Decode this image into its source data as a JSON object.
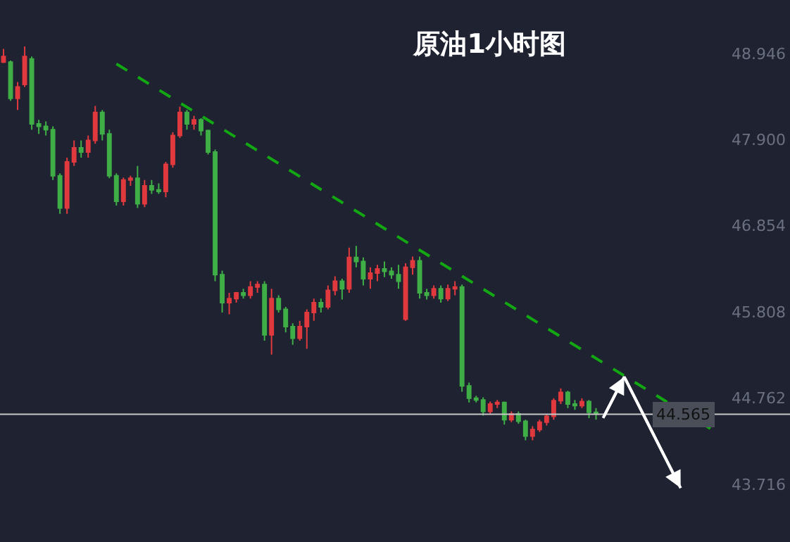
{
  "chart_data": {
    "type": "candlestick",
    "title": "原油1小时图",
    "categories": [
      null,
      null,
      null,
      null,
      null,
      null,
      null,
      null,
      null,
      null,
      null,
      null,
      null,
      null,
      null,
      null,
      null,
      null,
      null,
      null,
      null,
      null,
      null,
      null,
      null,
      null,
      null,
      null,
      null,
      null,
      null,
      null,
      null,
      null,
      null,
      null,
      null,
      null,
      null,
      null,
      null,
      null,
      null,
      null,
      null,
      null,
      null,
      null,
      null,
      null,
      null,
      null,
      null,
      null,
      null,
      null,
      null,
      null,
      null,
      null,
      null,
      null,
      null,
      null,
      null,
      null,
      null,
      null,
      null,
      null,
      null,
      null,
      null,
      null,
      null,
      null,
      null,
      null,
      null,
      null,
      null,
      null,
      null,
      null,
      null,
      null,
      null,
      null,
      null,
      null,
      null,
      null,
      null,
      null,
      null,
      null,
      null,
      null,
      null,
      null,
      null,
      null,
      null,
      null,
      null,
      null,
      null,
      null,
      null,
      null,
      null,
      null
    ],
    "ohlc": [
      [
        48.84,
        49.0,
        48.83,
        48.91
      ],
      [
        48.84,
        48.86,
        48.37,
        48.4
      ],
      [
        48.4,
        48.6,
        48.26,
        48.54
      ],
      [
        48.57,
        49.03,
        48.54,
        48.91
      ],
      [
        48.88,
        48.91,
        48.02,
        48.09
      ],
      [
        48.09,
        48.14,
        47.97,
        48.06
      ],
      [
        48.06,
        48.12,
        47.95,
        48.02
      ],
      [
        48.02,
        48.06,
        47.41,
        47.46
      ],
      [
        47.46,
        47.49,
        47.0,
        47.07
      ],
      [
        47.07,
        47.68,
        47.0,
        47.63
      ],
      [
        47.63,
        47.89,
        47.58,
        47.8
      ],
      [
        47.8,
        47.89,
        47.68,
        47.75
      ],
      [
        47.75,
        47.95,
        47.68,
        47.89
      ],
      [
        47.89,
        48.31,
        47.85,
        48.23
      ],
      [
        48.23,
        48.26,
        47.89,
        47.97
      ],
      [
        47.97,
        48.02,
        47.43,
        47.46
      ],
      [
        47.46,
        47.49,
        47.1,
        47.15
      ],
      [
        47.15,
        47.44,
        47.1,
        47.41
      ],
      [
        47.41,
        47.46,
        47.34,
        47.43
      ],
      [
        47.43,
        47.58,
        47.07,
        47.12
      ],
      [
        47.12,
        47.41,
        47.08,
        47.34
      ],
      [
        47.34,
        47.41,
        47.24,
        47.29
      ],
      [
        47.29,
        47.37,
        47.24,
        47.27
      ],
      [
        47.27,
        47.63,
        47.2,
        47.6
      ],
      [
        47.6,
        47.99,
        47.56,
        47.95
      ],
      [
        47.95,
        48.3,
        47.92,
        48.23
      ],
      [
        48.23,
        48.26,
        48.02,
        48.09
      ],
      [
        48.09,
        48.19,
        48.02,
        48.14
      ],
      [
        48.14,
        48.16,
        47.95,
        48.01
      ],
      [
        48.01,
        48.02,
        47.72,
        47.75
      ],
      [
        47.75,
        47.78,
        46.18,
        46.26
      ],
      [
        46.26,
        46.31,
        45.8,
        45.92
      ],
      [
        45.92,
        46.04,
        45.78,
        45.97
      ],
      [
        45.97,
        46.05,
        45.92,
        46.04
      ],
      [
        46.04,
        46.09,
        45.97,
        46.01
      ],
      [
        46.01,
        46.18,
        45.97,
        46.11
      ],
      [
        46.11,
        46.18,
        46.04,
        46.14
      ],
      [
        46.14,
        46.18,
        45.46,
        45.53
      ],
      [
        45.53,
        46.09,
        45.29,
        45.97
      ],
      [
        45.97,
        46.01,
        45.8,
        45.84
      ],
      [
        45.84,
        45.87,
        45.56,
        45.63
      ],
      [
        45.63,
        45.67,
        45.41,
        45.49
      ],
      [
        45.49,
        45.7,
        45.46,
        45.63
      ],
      [
        45.63,
        45.84,
        45.36,
        45.8
      ],
      [
        45.8,
        45.97,
        45.7,
        45.92
      ],
      [
        45.92,
        45.97,
        45.8,
        45.87
      ],
      [
        45.87,
        46.13,
        45.84,
        46.07
      ],
      [
        46.07,
        46.24,
        46.01,
        46.18
      ],
      [
        46.18,
        46.21,
        45.96,
        46.09
      ],
      [
        46.09,
        46.59,
        46.04,
        46.47
      ],
      [
        46.47,
        46.61,
        46.35,
        46.42
      ],
      [
        46.42,
        46.47,
        46.13,
        46.21
      ],
      [
        46.21,
        46.35,
        46.09,
        46.28
      ],
      [
        46.28,
        46.38,
        46.18,
        46.33
      ],
      [
        46.33,
        46.42,
        46.23,
        46.3
      ],
      [
        46.3,
        46.35,
        46.21,
        46.26
      ],
      [
        46.26,
        46.38,
        46.09,
        46.18
      ],
      [
        45.72,
        46.4,
        45.7,
        46.35
      ],
      [
        46.35,
        46.48,
        46.26,
        46.43
      ],
      [
        46.43,
        46.48,
        45.97,
        46.04
      ],
      [
        46.04,
        46.09,
        45.96,
        46.01
      ],
      [
        46.01,
        46.13,
        45.97,
        46.09
      ],
      [
        46.09,
        46.13,
        45.92,
        45.97
      ],
      [
        45.97,
        46.14,
        45.94,
        46.09
      ],
      [
        46.09,
        46.18,
        46.01,
        46.11
      ],
      [
        46.11,
        46.14,
        44.84,
        44.91
      ],
      [
        44.91,
        44.95,
        44.71,
        44.76
      ],
      [
        44.76,
        44.79,
        44.71,
        44.74
      ],
      [
        44.74,
        44.77,
        44.55,
        44.6
      ],
      [
        44.6,
        44.72,
        44.57,
        44.69
      ],
      [
        44.69,
        44.74,
        44.64,
        44.71
      ],
      [
        44.71,
        44.72,
        44.44,
        44.5
      ],
      [
        44.5,
        44.6,
        44.47,
        44.57
      ],
      [
        44.57,
        44.6,
        44.45,
        44.48
      ],
      [
        44.48,
        44.5,
        44.25,
        44.3
      ],
      [
        44.3,
        44.42,
        44.25,
        44.38
      ],
      [
        44.38,
        44.5,
        44.35,
        44.47
      ],
      [
        44.47,
        44.57,
        44.43,
        44.54
      ],
      [
        44.54,
        44.76,
        44.5,
        44.73
      ],
      [
        44.73,
        44.88,
        44.69,
        44.83
      ],
      [
        44.83,
        44.85,
        44.64,
        44.69
      ],
      [
        44.69,
        44.74,
        44.62,
        44.67
      ],
      [
        44.67,
        44.76,
        44.64,
        44.72
      ],
      [
        44.72,
        44.74,
        44.52,
        44.59
      ],
      [
        44.59,
        44.64,
        44.5,
        44.57
      ],
      null,
      null,
      null,
      null,
      null,
      null,
      null,
      null,
      null,
      null,
      null,
      null,
      null,
      null,
      null,
      null,
      null,
      null,
      null,
      null,
      null,
      null,
      null,
      null,
      null,
      null,
      null
    ],
    "colors": [
      "#e0393e",
      "#3fae46",
      "#e0393e",
      "#e0393e",
      "#3fae46",
      "#3fae46",
      "#3fae46",
      "#3fae46",
      "#3fae46",
      "#e0393e",
      "#e0393e",
      "#3fae46",
      "#e0393e",
      "#e0393e",
      "#3fae46",
      "#3fae46",
      "#3fae46",
      "#e0393e",
      "#e0393e",
      "#3fae46",
      "#e0393e",
      "#3fae46",
      "#3fae46",
      "#e0393e",
      "#e0393e",
      "#e0393e",
      "#3fae46",
      "#e0393e",
      "#3fae46",
      "#3fae46",
      "#3fae46",
      "#3fae46",
      "#e0393e",
      "#e0393e",
      "#3fae46",
      "#e0393e",
      "#e0393e",
      "#3fae46",
      "#e0393e",
      "#3fae46",
      "#3fae46",
      "#3fae46",
      "#e0393e",
      "#e0393e",
      "#e0393e",
      "#3fae46",
      "#e0393e",
      "#e0393e",
      "#3fae46",
      "#e0393e",
      "#3fae46",
      "#3fae46",
      "#e0393e",
      "#e0393e",
      "#3fae46",
      "#3fae46",
      "#3fae46",
      "#e0393e",
      "#e0393e",
      "#3fae46",
      "#3fae46",
      "#e0393e",
      "#3fae46",
      "#e0393e",
      "#e0393e",
      "#3fae46",
      "#3fae46",
      "#3fae46",
      "#3fae46",
      "#e0393e",
      "#e0393e",
      "#3fae46",
      "#e0393e",
      "#3fae46",
      "#3fae46",
      "#e0393e",
      "#e0393e",
      "#e0393e",
      "#e0393e",
      "#e0393e",
      "#3fae46",
      "#3fae46",
      "#e0393e",
      "#3fae46",
      "#3fae46",
      null,
      null,
      null,
      null,
      null,
      null,
      null,
      null,
      null,
      null,
      null,
      null,
      null,
      null,
      null,
      null,
      null,
      null,
      null,
      null,
      null,
      null,
      null,
      null,
      null,
      null,
      null
    ],
    "series": [
      {
        "type": "line",
        "color": "#13a813",
        "line_style": "dashed",
        "values": [
          null,
          null,
          null,
          null,
          null,
          null,
          null,
          null,
          null,
          null,
          null,
          null,
          null,
          null,
          null,
          null,
          48.82,
          null,
          null,
          null,
          null,
          null,
          null,
          null,
          null,
          null,
          null,
          null,
          null,
          null,
          null,
          null,
          null,
          null,
          null,
          null,
          null,
          null,
          null,
          null,
          null,
          null,
          null,
          null,
          null,
          null,
          null,
          null,
          null,
          null,
          null,
          null,
          null,
          null,
          null,
          null,
          null,
          null,
          null,
          null,
          null,
          null,
          null,
          null,
          null,
          null,
          null,
          null,
          null,
          null,
          null,
          null,
          null,
          null,
          null,
          null,
          null,
          null,
          null,
          null,
          null,
          null,
          null,
          null,
          null,
          null,
          null,
          null,
          null,
          null,
          null,
          null,
          null,
          null,
          null,
          null,
          null,
          null,
          null,
          null,
          null,
          44.35,
          null,
          null,
          null,
          null,
          null,
          null,
          null,
          null,
          null,
          null
        ]
      },
      {
        "type": "line",
        "color": "#ffffff",
        "line_style": "solid",
        "values": [
          null,
          null,
          null,
          null,
          null,
          null,
          null,
          null,
          null,
          null,
          null,
          null,
          null,
          null,
          null,
          null,
          null,
          null,
          null,
          null,
          null,
          null,
          null,
          null,
          null,
          null,
          null,
          null,
          null,
          null,
          null,
          null,
          null,
          null,
          null,
          null,
          null,
          null,
          null,
          null,
          null,
          null,
          null,
          null,
          null,
          null,
          null,
          null,
          null,
          null,
          null,
          null,
          null,
          null,
          null,
          null,
          null,
          null,
          null,
          null,
          null,
          null,
          null,
          null,
          null,
          null,
          null,
          null,
          null,
          null,
          null,
          null,
          null,
          null,
          null,
          null,
          null,
          null,
          null,
          null,
          null,
          null,
          null,
          null,
          null,
          44.52,
          null,
          null,
          45.02,
          null,
          null,
          null,
          null,
          null,
          null,
          null,
          43.67,
          null,
          null,
          null,
          null,
          null,
          null,
          null,
          null,
          null,
          null,
          null,
          null,
          null,
          null,
          null
        ]
      }
    ],
    "ref_lines": [
      {
        "axis": "y",
        "value": 44.565,
        "label": "44.565",
        "color": "#c8c8c8"
      }
    ],
    "ylim": [
      43.015,
      49.595
    ],
    "yticks": [
      48.946,
      {
        "value": 47.9,
        "label": "47.900"
      },
      46.854,
      45.808,
      44.762,
      43.716
    ],
    "tick_labels": "y",
    "grid": false
  }
}
